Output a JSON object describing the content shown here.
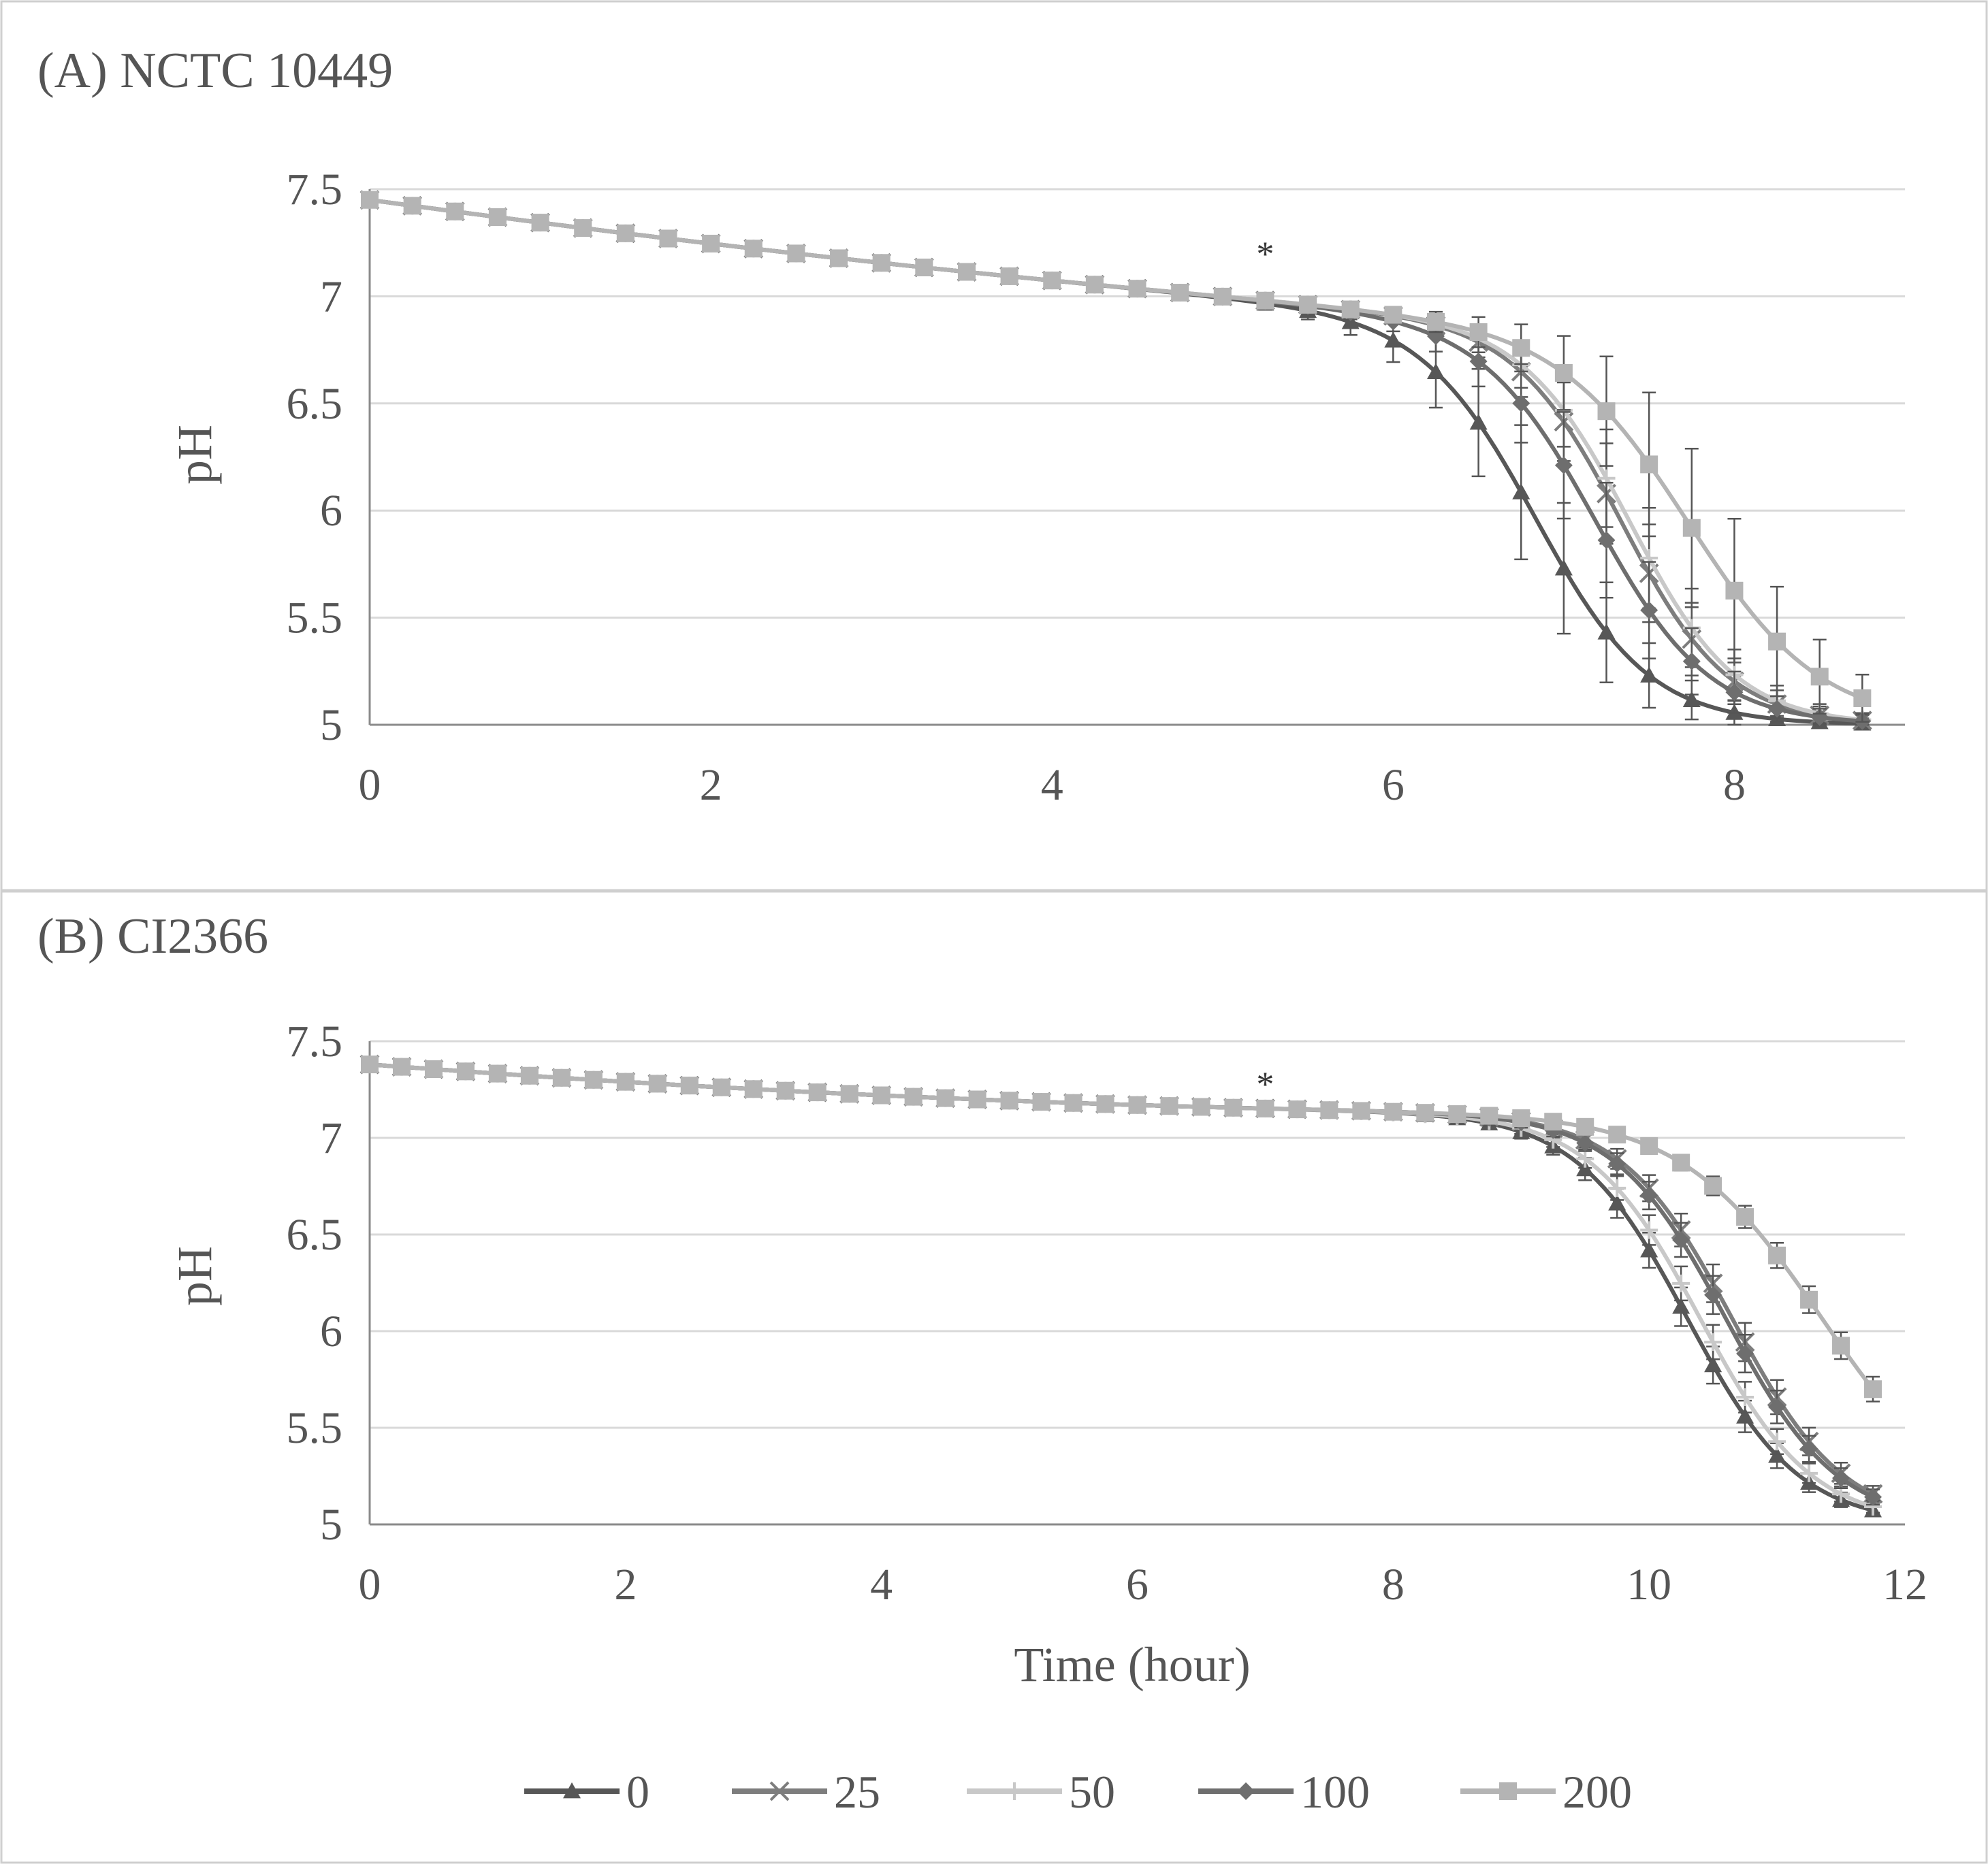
{
  "chart_data": [
    {
      "type": "line",
      "title": "(A) NCTC 10449",
      "xlabel": "",
      "ylabel": "pH",
      "xlim": [
        0,
        9
      ],
      "ylim": [
        5,
        7.5
      ],
      "xticks": [
        0,
        2,
        4,
        6,
        8
      ],
      "yticks": [
        "7.5",
        "7",
        "6.5",
        "6",
        "5.5",
        "5"
      ],
      "grid": true,
      "annotation": {
        "text": "*",
        "x": 5.25,
        "y": 7.2
      },
      "series": [
        {
          "name": "0",
          "color": "#575757",
          "marker": "triangle",
          "midpoint": 6.85,
          "slope": 3.0,
          "err_max": 0.3
        },
        {
          "name": "25",
          "color": "#7d7d7d",
          "marker": "x",
          "midpoint": 7.35,
          "slope": 3.2,
          "err_max": 0.22
        },
        {
          "name": "50",
          "color": "#c8c8c8",
          "marker": "plus",
          "midpoint": 7.4,
          "slope": 3.2,
          "err_max": 0.22
        },
        {
          "name": "100",
          "color": "#6e6e6e",
          "marker": "diamond",
          "midpoint": 7.2,
          "slope": 3.0,
          "err_max": 0.25
        },
        {
          "name": "200",
          "color": "#b4b4b4",
          "marker": "square",
          "midpoint": 7.75,
          "slope": 2.6,
          "err_max": 0.35
        }
      ]
    },
    {
      "type": "line",
      "title": "(B) CI2366",
      "xlabel": "Time (hour)",
      "ylabel": "pH",
      "xlim": [
        0,
        12
      ],
      "ylim": [
        5,
        7.5
      ],
      "xticks": [
        0,
        2,
        4,
        6,
        8,
        10,
        12
      ],
      "yticks": [
        "7.5",
        "7",
        "6.5",
        "6",
        "5.5",
        "5"
      ],
      "grid": true,
      "annotation": {
        "text": "*",
        "x": 7.0,
        "y": 7.28
      },
      "series": [
        {
          "name": "0",
          "color": "#575757",
          "marker": "triangle",
          "midpoint": 10.3,
          "slope": 2.3,
          "err_max": 0.08
        },
        {
          "name": "25",
          "color": "#7d7d7d",
          "marker": "x",
          "midpoint": 10.65,
          "slope": 2.3,
          "err_max": 0.08
        },
        {
          "name": "50",
          "color": "#c8c8c8",
          "marker": "plus",
          "midpoint": 10.4,
          "slope": 2.3,
          "err_max": 0.07
        },
        {
          "name": "100",
          "color": "#6e6e6e",
          "marker": "diamond",
          "midpoint": 10.6,
          "slope": 2.3,
          "err_max": 0.08
        },
        {
          "name": "200",
          "color": "#b4b4b4",
          "marker": "square",
          "midpoint": 11.35,
          "slope": 1.8,
          "err_max": 0.05
        }
      ]
    }
  ],
  "legend": {
    "position": "bottom",
    "items": [
      {
        "label": "0",
        "color": "#575757",
        "marker": "triangle"
      },
      {
        "label": "25",
        "color": "#7d7d7d",
        "marker": "x"
      },
      {
        "label": "50",
        "color": "#c8c8c8",
        "marker": "plus"
      },
      {
        "label": "100",
        "color": "#6e6e6e",
        "marker": "diamond"
      },
      {
        "label": "200",
        "color": "#b4b4b4",
        "marker": "square"
      }
    ]
  }
}
